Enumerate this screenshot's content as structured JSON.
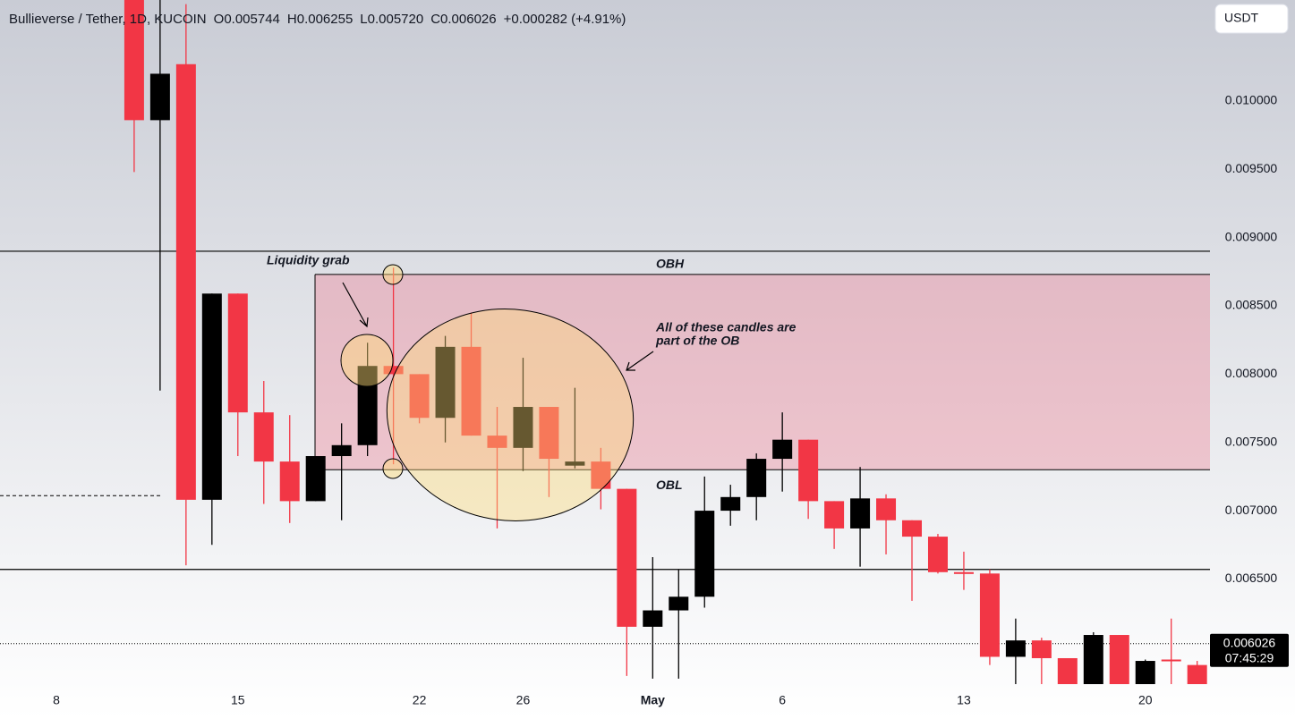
{
  "chart_data": {
    "type": "candlestick",
    "title": "Bullieverse / Tether, 1D, KUCOIN",
    "ohlc_header": [
      "O0.005744",
      "H0.006255",
      "L0.005720",
      "C0.006026",
      "+0.000282 (+4.91%)"
    ],
    "currency": "USDT",
    "categories": [
      "8",
      null,
      null,
      null,
      null,
      null,
      null,
      "15",
      null,
      null,
      null,
      null,
      null,
      null,
      "22",
      null,
      null,
      null,
      "26",
      null,
      null,
      null,
      null,
      "May",
      null,
      null,
      null,
      null,
      "6",
      null,
      null,
      null,
      null,
      null,
      null,
      "13",
      null,
      null,
      null,
      null,
      null,
      null,
      "20",
      null,
      null
    ],
    "open": [
      null,
      null,
      null,
      0.0108,
      0.00986,
      0.01027,
      0.00708,
      0.00859,
      0.00772,
      0.00736,
      0.00707,
      0.0074,
      0.00748,
      0.00806,
      0.008,
      0.00768,
      0.0082,
      0.00755,
      0.00746,
      0.00776,
      0.00733,
      0.00736,
      0.00716,
      0.00615,
      0.00627,
      0.00637,
      0.007,
      0.0071,
      0.00738,
      0.00752,
      0.00707,
      0.00687,
      0.00709,
      0.00693,
      0.00681,
      0.00655,
      0.00654,
      0.00593,
      0.00605,
      0.00592,
      0.00573,
      0.00609,
      0.00573,
      0.00591,
      0.00587
    ],
    "high": [
      null,
      null,
      null,
      0.011,
      0.011,
      0.01071,
      0.00859,
      0.00859,
      0.00795,
      0.0077,
      0.0074,
      0.00764,
      0.00823,
      0.00878,
      0.008,
      0.00828,
      0.00845,
      0.00776,
      0.00812,
      0.00776,
      0.0079,
      0.00746,
      0.00716,
      0.00666,
      0.00657,
      0.00725,
      0.00719,
      0.00742,
      0.00772,
      0.00752,
      0.00707,
      0.00732,
      0.00712,
      0.00693,
      0.00683,
      0.0067,
      0.00657,
      0.00621,
      0.00607,
      0.00592,
      0.00611,
      0.00609,
      0.00591,
      0.00621,
      0.0059
    ],
    "low": [
      null,
      null,
      null,
      0.00948,
      0.00788,
      0.0066,
      0.00675,
      0.0074,
      0.00705,
      0.00691,
      0.00707,
      0.00693,
      0.0074,
      0.00734,
      0.00764,
      0.0075,
      0.00755,
      0.00687,
      0.00729,
      0.0071,
      0.00731,
      0.00701,
      0.00579,
      0.00577,
      0.00577,
      0.00629,
      0.00689,
      0.00693,
      0.00714,
      0.00694,
      0.00672,
      0.00659,
      0.00668,
      0.00634,
      0.00654,
      0.00642,
      0.00587,
      0.00573,
      0.00573,
      0.0057,
      0.0057,
      0.0057,
      0.0057,
      0.0057,
      0.0057
    ],
    "close": [
      null,
      null,
      null,
      0.00986,
      0.0102,
      0.00708,
      0.00859,
      0.00772,
      0.00736,
      0.00707,
      0.0074,
      0.00748,
      0.00806,
      0.008,
      0.00768,
      0.0082,
      0.00755,
      0.00746,
      0.00776,
      0.00738,
      0.00736,
      0.00716,
      0.00615,
      0.00627,
      0.00637,
      0.007,
      0.0071,
      0.00738,
      0.00752,
      0.00707,
      0.00687,
      0.00709,
      0.00693,
      0.00681,
      0.00655,
      0.00654,
      0.00593,
      0.00605,
      0.00592,
      0.00573,
      0.00609,
      0.00573,
      0.0059,
      0.0059,
      0.0057
    ],
    "up_color": "#000000",
    "down_color": "#f23645",
    "ylim": [
      0.00573,
      0.01074
    ],
    "yticks": [
      {
        "value": 0.0065,
        "label": "0.006500"
      },
      {
        "value": 0.007,
        "label": "0.007000"
      },
      {
        "value": 0.0075,
        "label": "0.007500"
      },
      {
        "value": 0.008,
        "label": "0.008000"
      },
      {
        "value": 0.0085,
        "label": "0.008500"
      },
      {
        "value": 0.009,
        "label": "0.009000"
      },
      {
        "value": 0.0095,
        "label": "0.009500"
      },
      {
        "value": 0.01,
        "label": "0.010000"
      }
    ],
    "levels": [
      0.0089,
      0.00657
    ],
    "dashed_level": 0.00711,
    "last_price": 0.006026,
    "countdown": "07:45:29",
    "zone": {
      "top": 0.00873,
      "bottom": 0.0073,
      "top_label": "OBH",
      "bottom_label": "OBL"
    },
    "annotations": [
      "Liquidity grab",
      "All of these candles are",
      "part of the OB"
    ]
  }
}
